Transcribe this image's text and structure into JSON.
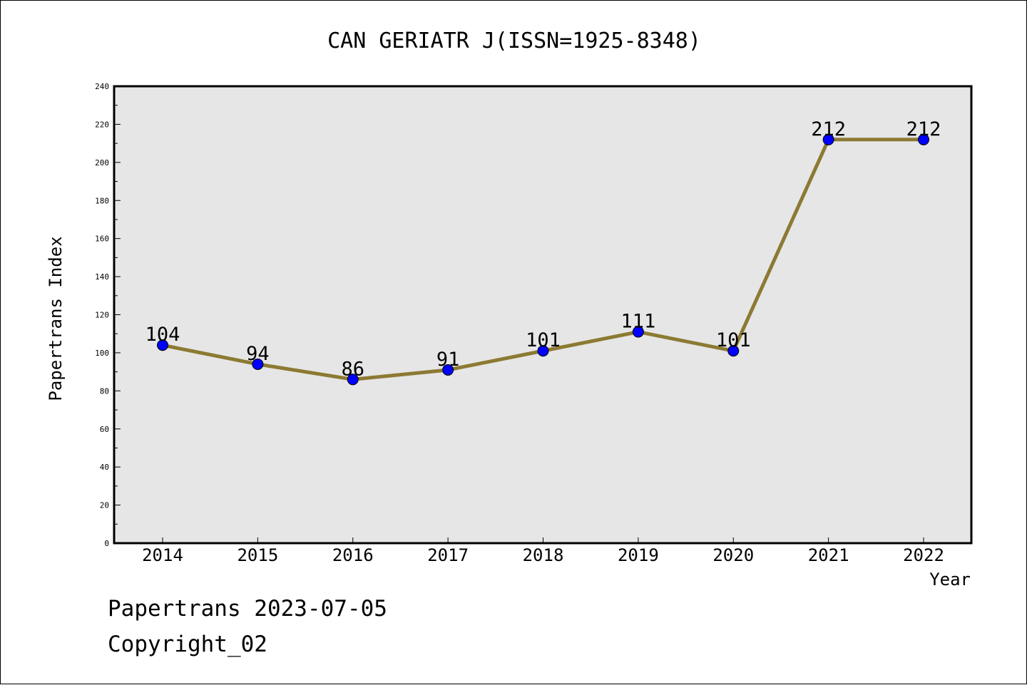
{
  "chart_data": {
    "type": "line",
    "title": "CAN GERIATR J(ISSN=1925-8348)",
    "xlabel": "Year",
    "ylabel": "Papertrans Index",
    "categories": [
      "2014",
      "2015",
      "2016",
      "2017",
      "2018",
      "2019",
      "2020",
      "2021",
      "2022"
    ],
    "series": [
      {
        "values": [
          104,
          94,
          86,
          91,
          101,
          111,
          101,
          212,
          212
        ]
      }
    ],
    "data_labels": [
      "104",
      "94",
      "86",
      "91",
      "101",
      "111",
      "101",
      "212",
      "212"
    ],
    "ylim": [
      0,
      240
    ],
    "yticks": [
      "0",
      "20",
      "40",
      "60",
      "80",
      "100",
      "120",
      "140",
      "160",
      "180",
      "200",
      "220",
      "240"
    ],
    "grid": false,
    "legend": "none",
    "colors": {
      "plot_background": "#e6e6e6",
      "line": "#8c7a33",
      "marker": "#0000ff"
    }
  },
  "footer": {
    "stamp": "Papertrans 2023-07-05",
    "copyright": "Copyright_02"
  }
}
